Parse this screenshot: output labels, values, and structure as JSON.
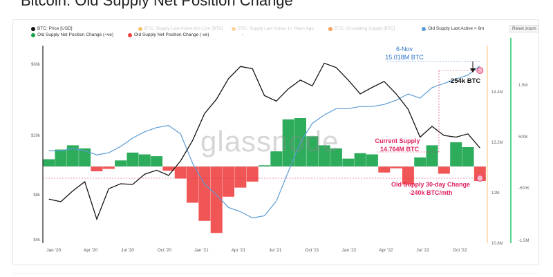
{
  "page": {
    "title": "Bitcoin: Old Supply Net Position Change"
  },
  "toolbar": {
    "reset_zoom": "Reset zoom"
  },
  "legend": [
    {
      "label": "BTC: Price [USD]",
      "color": "#111111",
      "faded": false
    },
    {
      "label": "BTC: Supply Last Active 6m-12m [BTC]",
      "color": "#f5c26b",
      "faded": true
    },
    {
      "label": "BTC: Supply Last Active 1+ Years Ago",
      "color": "#f7d29a",
      "faded": true
    },
    {
      "label": "BTC: Circulating Supply [BTC]",
      "color": "#f3a15b",
      "faded": true
    },
    {
      "label": "Old Supply Last Active > 6m",
      "color": "#5b9bd5",
      "faded": false
    },
    {
      "label": "Old Supply Net Position Change (+ve)",
      "color": "#16a34a",
      "faded": false
    },
    {
      "label": "Old Supply Net Position Change (-ve)",
      "color": "#ef4444",
      "faded": false
    },
    {
      "label": "-",
      "color": "",
      "faded": false
    }
  ],
  "colors": {
    "price": "#111111",
    "old_supply": "#5b9bd5",
    "positive": "#16a34a",
    "negative": "#ef4444",
    "annotation_blue": "#2b73c9",
    "annotation_pink": "#e0245e",
    "right_axis_bar": "#2ecc71",
    "divider": "#f5c26b"
  },
  "watermark": "glassnode",
  "annotations": {
    "date": "6-Nov",
    "supply_value": "15.018M BTC",
    "drop": "-254k BTC",
    "current_supply_label": "Current Supply",
    "current_supply_value": "14.764M BTC",
    "change_label": "Old Supply 30-day Change",
    "change_value": "-240k BTC/mth"
  },
  "chart_data": {
    "type": "line",
    "title": "Bitcoin: Old Supply Net Position Change",
    "x_ticks": [
      "Jan '20",
      "Apr '20",
      "Jul '20",
      "Oct '20",
      "Jan '21",
      "Apr '21",
      "Jul '21",
      "Oct '21",
      "Jan '22",
      "Apr '22",
      "Jul '22",
      "Oct '22"
    ],
    "y_left": {
      "scale": "log",
      "ticks": [
        "$60k",
        "$20k",
        "$8k",
        "$4k"
      ],
      "tick_values": [
        60000,
        20000,
        8000,
        4000
      ]
    },
    "y_right_supply": {
      "ticks": [
        "14.4M",
        "13.2M",
        "12M",
        "10.8M"
      ],
      "tick_values": [
        14400000,
        13200000,
        12000000,
        10800000
      ],
      "range": [
        10800000,
        15500000
      ]
    },
    "y_right_change": {
      "ticks": [
        "1.5M",
        "500K",
        "-500K",
        "-1.5M"
      ],
      "tick_values": [
        1500000,
        500000,
        -500000,
        -1500000
      ]
    },
    "x": [
      "2019-11",
      "2019-12",
      "2020-01",
      "2020-02",
      "2020-03",
      "2020-04",
      "2020-05",
      "2020-06",
      "2020-07",
      "2020-08",
      "2020-09",
      "2020-10",
      "2020-11",
      "2020-12",
      "2021-01",
      "2021-02",
      "2021-03",
      "2021-04",
      "2021-05",
      "2021-06",
      "2021-07",
      "2021-08",
      "2021-09",
      "2021-10",
      "2021-11",
      "2021-12",
      "2022-01",
      "2022-02",
      "2022-03",
      "2022-04",
      "2022-05",
      "2022-06",
      "2022-07",
      "2022-08",
      "2022-09",
      "2022-10",
      "2022-11"
    ],
    "series": [
      {
        "name": "BTC: Price [USD]",
        "values": [
          7500,
          7200,
          8500,
          9800,
          5500,
          8800,
          9500,
          9400,
          11000,
          11700,
          10800,
          13500,
          18500,
          28000,
          35000,
          48000,
          58000,
          56000,
          37000,
          34000,
          41000,
          47000,
          43000,
          61000,
          57000,
          47000,
          38000,
          42000,
          46000,
          38000,
          30000,
          19500,
          23000,
          20000,
          19500,
          20500,
          16500
        ]
      },
      {
        "name": "Old Supply Last Active > 6m",
        "values": [
          13000,
          13000,
          13050,
          13000,
          12900,
          12950,
          13100,
          13300,
          13450,
          13550,
          13600,
          13400,
          12700,
          12200,
          11950,
          11650,
          11550,
          11400,
          11450,
          11800,
          12500,
          13200,
          13650,
          13850,
          14000,
          14000,
          14050,
          14050,
          14100,
          14200,
          14350,
          14250,
          14500,
          14600,
          14700,
          14800,
          15018
        ],
        "unit": "thousand BTC"
      },
      {
        "name": "Old Supply Net Position Change",
        "values": [
          120,
          280,
          350,
          300,
          -80,
          -40,
          100,
          230,
          200,
          170,
          -70,
          -200,
          -600,
          -900,
          -1100,
          -500,
          -350,
          -250,
          20,
          250,
          780,
          800,
          500,
          350,
          300,
          130,
          220,
          200,
          -100,
          -30,
          -300,
          150,
          350,
          -120,
          400,
          320,
          -240
        ],
        "unit": "thousand BTC/mth"
      }
    ]
  }
}
